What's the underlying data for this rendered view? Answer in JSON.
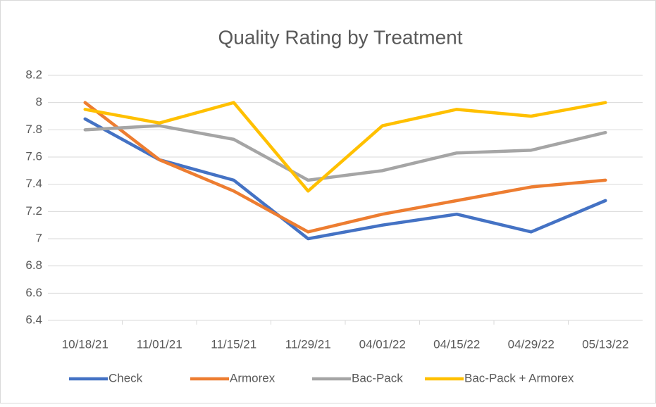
{
  "chart_data": {
    "type": "line",
    "title": "Quality Rating by Treatment",
    "categories": [
      "10/18/21",
      "11/01/21",
      "11/15/21",
      "11/29/21",
      "04/01/22",
      "04/15/22",
      "04/29/22",
      "05/13/22"
    ],
    "series": [
      {
        "name": "Check",
        "color": "#4472c4",
        "values": [
          7.88,
          7.58,
          7.43,
          7.0,
          7.1,
          7.18,
          7.05,
          7.28
        ]
      },
      {
        "name": "Armorex",
        "color": "#ed7d31",
        "values": [
          8.0,
          7.58,
          7.35,
          7.05,
          7.18,
          7.28,
          7.38,
          7.43
        ]
      },
      {
        "name": "Bac-Pack",
        "color": "#a5a5a5",
        "values": [
          7.8,
          7.83,
          7.73,
          7.43,
          7.5,
          7.63,
          7.65,
          7.78
        ]
      },
      {
        "name": "Bac-Pack + Armorex",
        "color": "#ffc000",
        "values": [
          7.95,
          7.85,
          8.0,
          7.35,
          7.83,
          7.95,
          7.9,
          8.0
        ]
      }
    ],
    "ylim": [
      6.4,
      8.2
    ],
    "yticks": [
      6.4,
      6.6,
      6.8,
      7,
      7.2,
      7.4,
      7.6,
      7.8,
      8,
      8.2
    ],
    "grid": true,
    "legend": "bottom"
  }
}
